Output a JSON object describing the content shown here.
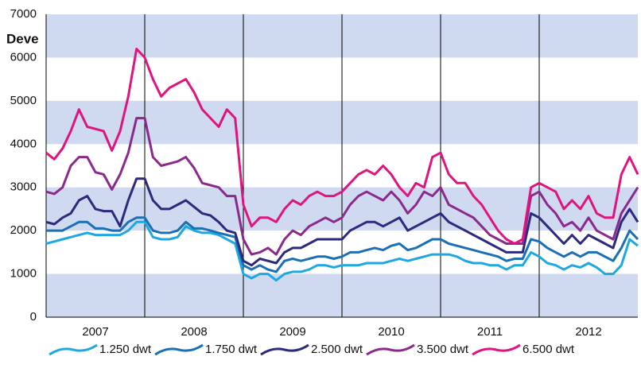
{
  "chart_data": {
    "type": "line",
    "title": "Deve",
    "x": [
      2007,
      2007.083,
      2007.167,
      2007.25,
      2007.333,
      2007.417,
      2007.5,
      2007.583,
      2007.667,
      2007.75,
      2007.833,
      2007.917,
      2008,
      2008.083,
      2008.167,
      2008.25,
      2008.333,
      2008.417,
      2008.5,
      2008.583,
      2008.667,
      2008.75,
      2008.833,
      2008.917,
      2009,
      2009.083,
      2009.167,
      2009.25,
      2009.333,
      2009.417,
      2009.5,
      2009.583,
      2009.667,
      2009.75,
      2009.833,
      2009.917,
      2010,
      2010.083,
      2010.167,
      2010.25,
      2010.333,
      2010.417,
      2010.5,
      2010.583,
      2010.667,
      2010.75,
      2010.833,
      2010.917,
      2011,
      2011.083,
      2011.167,
      2011.25,
      2011.333,
      2011.417,
      2011.5,
      2011.583,
      2011.667,
      2011.75,
      2011.833,
      2011.917,
      2012,
      2012.083,
      2012.167,
      2012.25,
      2012.333,
      2012.417,
      2012.5,
      2012.583,
      2012.667,
      2012.75,
      2012.833,
      2012.917,
      2013
    ],
    "series": [
      {
        "name": "1.250 dwt",
        "color": "#1fa8e0",
        "values": [
          1700,
          1750,
          1800,
          1850,
          1900,
          1950,
          1900,
          1900,
          1900,
          1900,
          2000,
          2200,
          2200,
          1850,
          1800,
          1800,
          1850,
          2100,
          2000,
          1950,
          1950,
          1900,
          1800,
          1700,
          1000,
          900,
          1000,
          1000,
          850,
          1000,
          1050,
          1050,
          1100,
          1200,
          1200,
          1150,
          1200,
          1200,
          1200,
          1250,
          1250,
          1250,
          1300,
          1350,
          1300,
          1350,
          1400,
          1450,
          1450,
          1450,
          1400,
          1300,
          1250,
          1250,
          1200,
          1200,
          1100,
          1200,
          1200,
          1500,
          1400,
          1250,
          1200,
          1100,
          1200,
          1150,
          1250,
          1150,
          1000,
          1000,
          1200,
          1800,
          1650
        ]
      },
      {
        "name": "1.750 dwt",
        "color": "#1a6fb5",
        "values": [
          2000,
          2000,
          2000,
          2100,
          2200,
          2200,
          2050,
          2050,
          2000,
          2000,
          2200,
          2300,
          2300,
          2000,
          1950,
          1950,
          2000,
          2200,
          2050,
          2050,
          2000,
          1950,
          1900,
          1850,
          1200,
          1100,
          1200,
          1100,
          1050,
          1300,
          1350,
          1300,
          1350,
          1400,
          1400,
          1350,
          1400,
          1500,
          1500,
          1550,
          1600,
          1550,
          1650,
          1700,
          1550,
          1600,
          1700,
          1800,
          1800,
          1700,
          1650,
          1600,
          1550,
          1500,
          1450,
          1400,
          1300,
          1350,
          1350,
          1800,
          1750,
          1600,
          1500,
          1400,
          1500,
          1400,
          1500,
          1500,
          1400,
          1300,
          1600,
          2000,
          1800
        ]
      },
      {
        "name": "2.500 dwt",
        "color": "#2b2a7e",
        "values": [
          2200,
          2150,
          2300,
          2400,
          2700,
          2800,
          2500,
          2450,
          2450,
          2100,
          2700,
          3200,
          3200,
          2700,
          2500,
          2500,
          2600,
          2700,
          2550,
          2400,
          2350,
          2200,
          2000,
          1950,
          1300,
          1200,
          1350,
          1300,
          1250,
          1500,
          1600,
          1600,
          1700,
          1800,
          1800,
          1800,
          1800,
          2000,
          2100,
          2200,
          2200,
          2100,
          2200,
          2300,
          2000,
          2100,
          2200,
          2300,
          2400,
          2200,
          2100,
          2000,
          1900,
          1800,
          1700,
          1600,
          1500,
          1500,
          1500,
          2400,
          2300,
          2100,
          1900,
          1700,
          1900,
          1700,
          1900,
          1800,
          1700,
          1600,
          2200,
          2500,
          2200
        ]
      },
      {
        "name": "3.500 dwt",
        "color": "#8b2a8c",
        "values": [
          2900,
          2850,
          3000,
          3500,
          3700,
          3700,
          3350,
          3300,
          2950,
          3300,
          3800,
          4600,
          4600,
          3700,
          3500,
          3550,
          3600,
          3700,
          3450,
          3100,
          3050,
          3000,
          2800,
          2800,
          1800,
          1450,
          1500,
          1600,
          1450,
          1800,
          2000,
          1900,
          2100,
          2200,
          2300,
          2200,
          2300,
          2600,
          2800,
          2900,
          2800,
          2700,
          2900,
          2700,
          2400,
          2600,
          2900,
          2800,
          3000,
          2600,
          2500,
          2400,
          2300,
          2100,
          1900,
          1800,
          1700,
          1700,
          1700,
          2800,
          2900,
          2600,
          2400,
          2100,
          2200,
          2000,
          2300,
          2000,
          1900,
          1800,
          2400,
          2700,
          3000
        ]
      },
      {
        "name": "6.500 dwt",
        "color": "#e0147f",
        "values": [
          3800,
          3650,
          3900,
          4300,
          4800,
          4400,
          4350,
          4300,
          3850,
          4300,
          5100,
          6200,
          6000,
          5500,
          5100,
          5300,
          5400,
          5500,
          5200,
          4800,
          4600,
          4400,
          4800,
          4600,
          2600,
          2100,
          2300,
          2300,
          2200,
          2500,
          2700,
          2600,
          2800,
          2900,
          2800,
          2800,
          2900,
          3100,
          3300,
          3400,
          3300,
          3500,
          3300,
          3000,
          2800,
          3100,
          3000,
          3700,
          3800,
          3300,
          3100,
          3100,
          2800,
          2600,
          2300,
          2000,
          1800,
          1700,
          1800,
          3000,
          3100,
          3000,
          2900,
          2500,
          2700,
          2500,
          2800,
          2400,
          2300,
          2300,
          3300,
          3700,
          3300
        ]
      }
    ],
    "xlim": [
      2007,
      2013
    ],
    "xticks": [
      {
        "value": 2007.5,
        "label": "2007"
      },
      {
        "value": 2008.5,
        "label": "2008"
      },
      {
        "value": 2009.5,
        "label": "2009"
      },
      {
        "value": 2010.5,
        "label": "2010"
      },
      {
        "value": 2011.5,
        "label": "2011"
      },
      {
        "value": 2012.5,
        "label": "2012"
      }
    ],
    "ylim": [
      0,
      7000
    ],
    "yticks": [
      0,
      1000,
      2000,
      3000,
      4000,
      5000,
      6000,
      7000
    ],
    "grid": true,
    "legend": "bottom"
  }
}
